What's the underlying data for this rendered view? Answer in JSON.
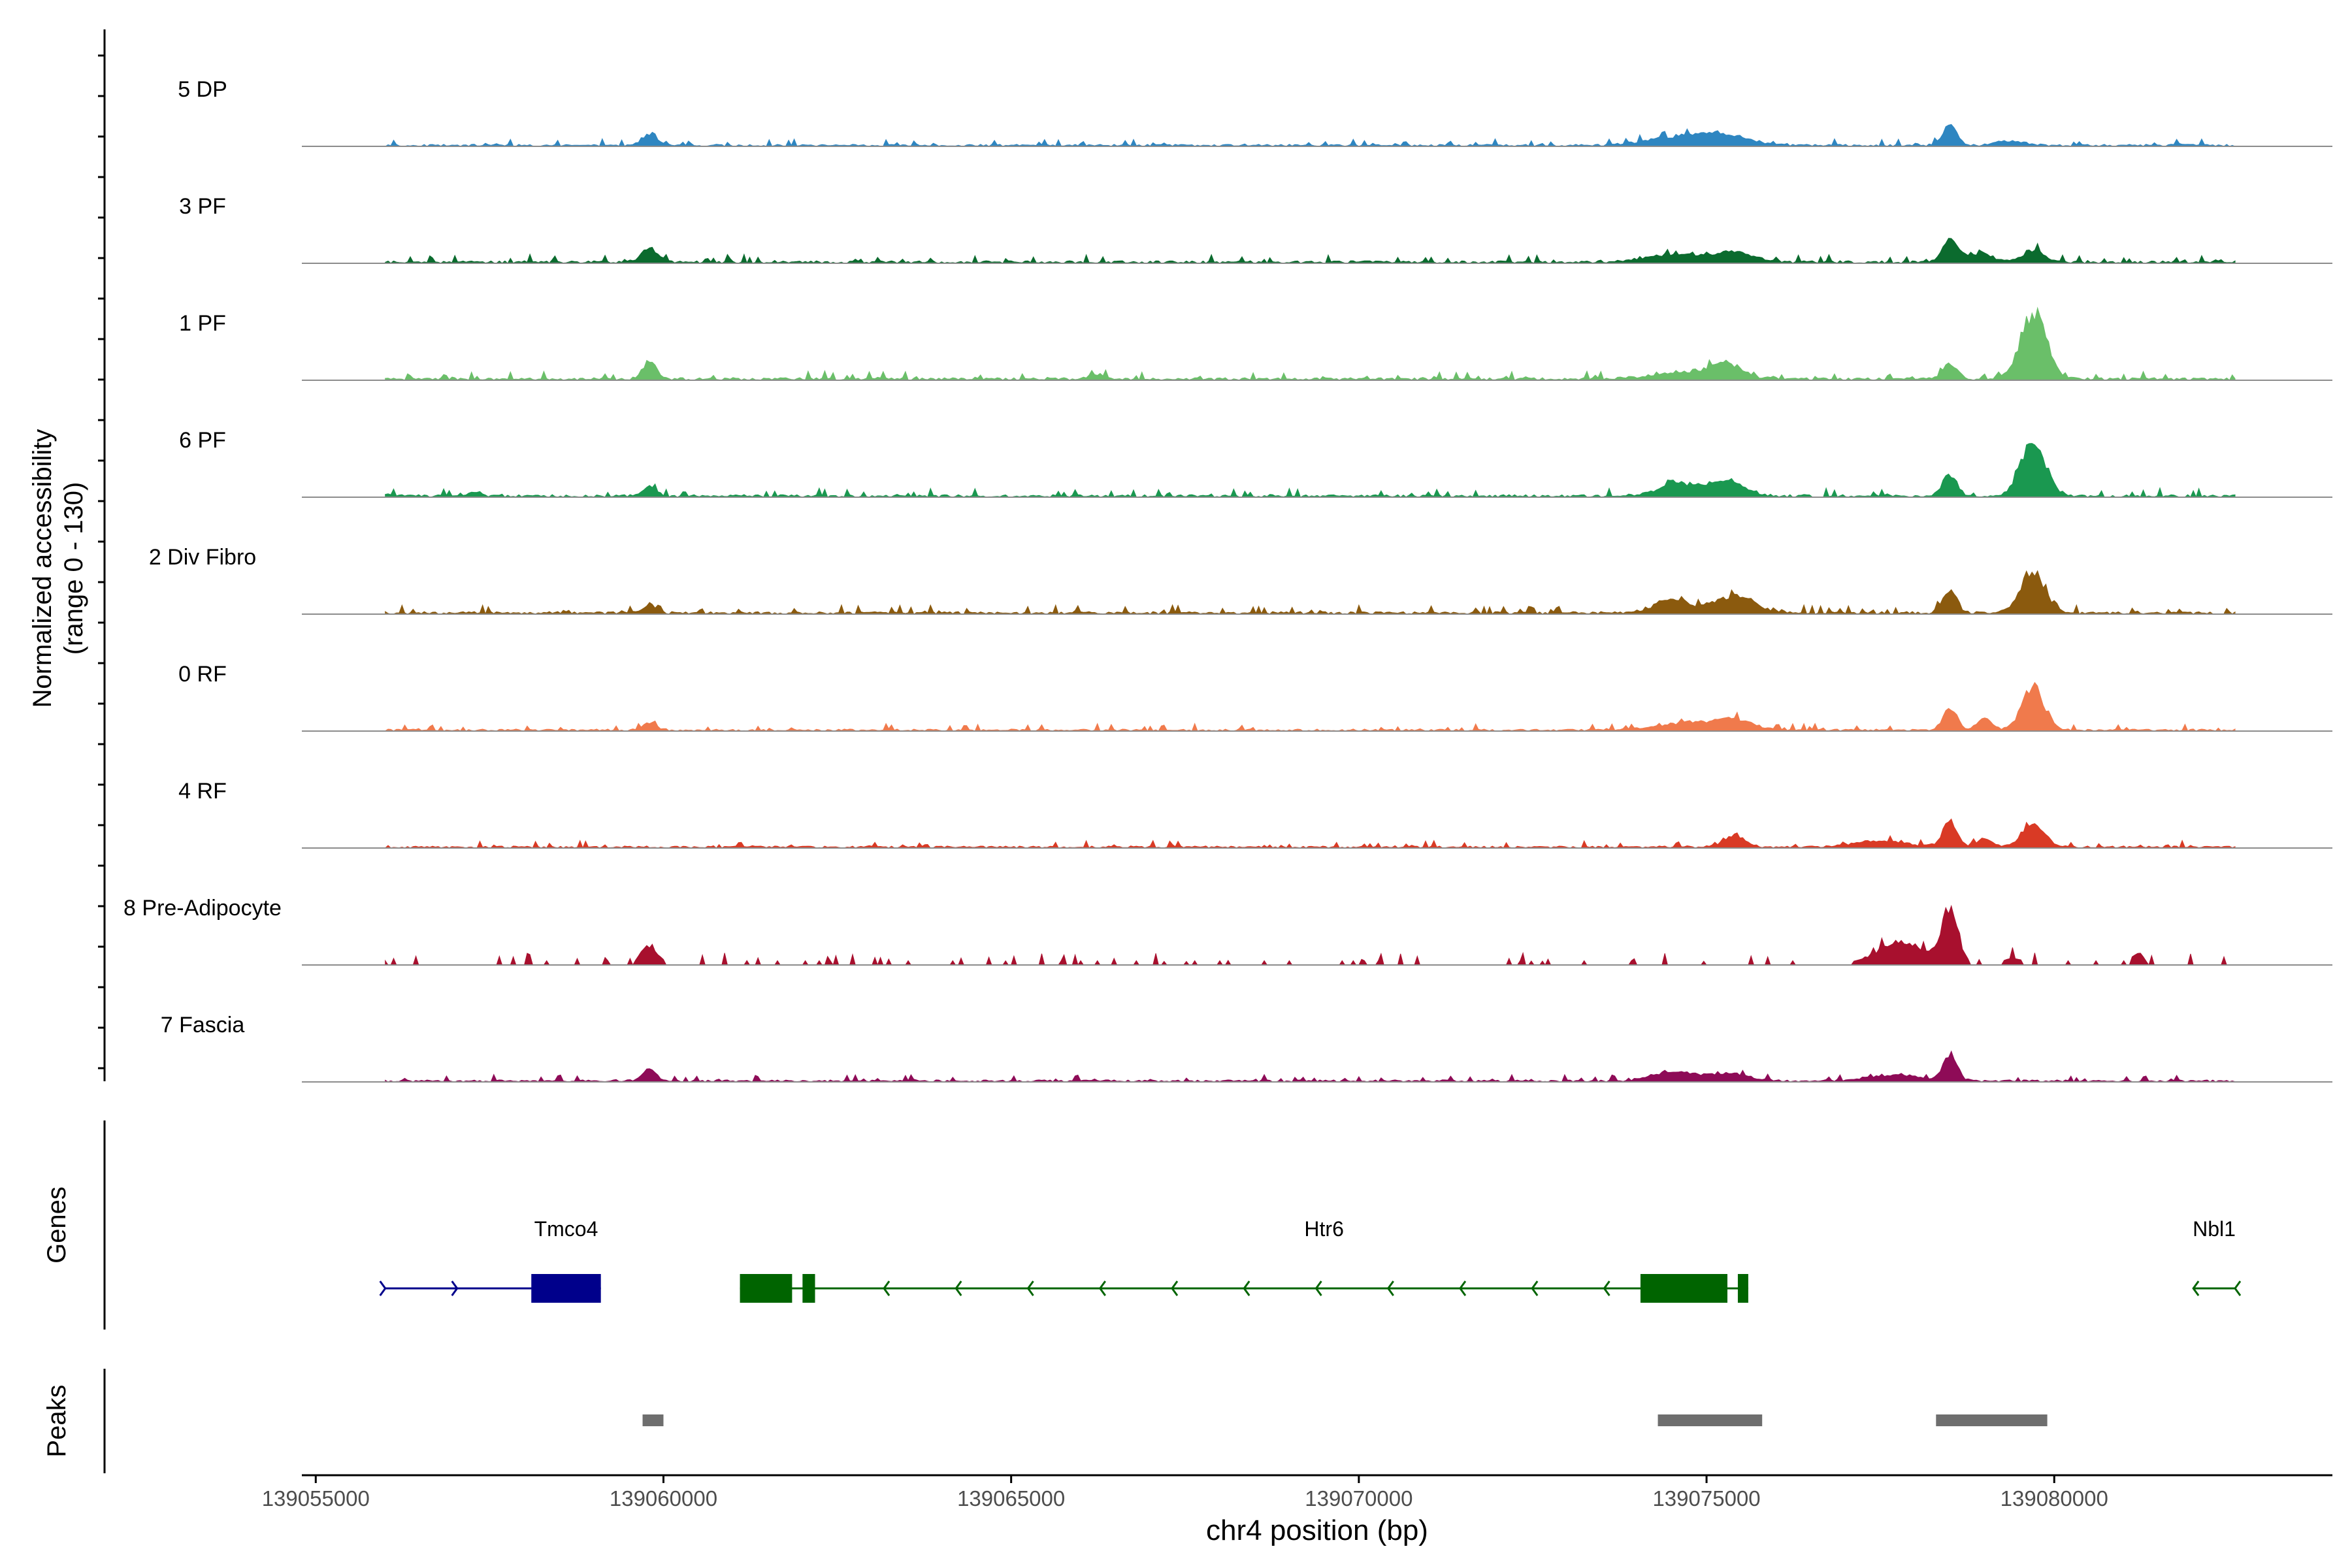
{
  "chart_data": {
    "type": "area",
    "title": "",
    "xlabel": "chr4 position (bp)",
    "ylabel_line1": "Normalized accessibility",
    "ylabel_line2": "(range 0 - 130)",
    "ylim": [
      0,
      130
    ],
    "xlim": [
      139054800,
      139084000
    ],
    "region": [
      139056000,
      139082600
    ],
    "x_ticks": [
      {
        "value": 139055000,
        "label": "139055000"
      },
      {
        "value": 139060000,
        "label": "139060000"
      },
      {
        "value": 139065000,
        "label": "139065000"
      },
      {
        "value": 139070000,
        "label": "139070000"
      },
      {
        "value": 139075000,
        "label": "139075000"
      },
      {
        "value": 139080000,
        "label": "139080000"
      }
    ],
    "series": [
      {
        "name": "5 DP",
        "color": "#2e86c1",
        "noise": 4,
        "peaks": [
          [
            139059800,
            14,
            120
          ],
          [
            139074500,
            10,
            400
          ],
          [
            139075200,
            14,
            350
          ],
          [
            139078500,
            26,
            100
          ],
          [
            139079400,
            6,
            200
          ]
        ]
      },
      {
        "name": "3 PF",
        "color": "#0b6b2e",
        "noise": 5,
        "peaks": [
          [
            139059800,
            18,
            120
          ],
          [
            139074500,
            10,
            400
          ],
          [
            139075400,
            12,
            300
          ],
          [
            139078500,
            30,
            100
          ],
          [
            139078900,
            12,
            200
          ],
          [
            139079700,
            16,
            150
          ]
        ]
      },
      {
        "name": "1 PF",
        "color": "#6abf69",
        "noise": 5,
        "peaks": [
          [
            139059800,
            22,
            100
          ],
          [
            139074800,
            10,
            500
          ],
          [
            139075300,
            16,
            200
          ],
          [
            139078500,
            20,
            100
          ],
          [
            139079700,
            90,
            180
          ],
          [
            139066200,
            6,
            100
          ]
        ]
      },
      {
        "name": "6 PF",
        "color": "#1a9850",
        "noise": 5,
        "peaks": [
          [
            139059800,
            12,
            100
          ],
          [
            139074600,
            16,
            300
          ],
          [
            139075300,
            20,
            250
          ],
          [
            139078500,
            30,
            100
          ],
          [
            139079700,
            70,
            180
          ],
          [
            139057300,
            6,
            80
          ]
        ]
      },
      {
        "name": "2 Div Fibro",
        "color": "#8b5a0e",
        "noise": 5,
        "peaks": [
          [
            139059800,
            10,
            100
          ],
          [
            139074500,
            18,
            250
          ],
          [
            139075400,
            22,
            300
          ],
          [
            139078500,
            30,
            100
          ],
          [
            139079700,
            50,
            180
          ]
        ]
      },
      {
        "name": "0 RF",
        "color": "#f07a4c",
        "noise": 4,
        "peaks": [
          [
            139059800,
            10,
            100
          ],
          [
            139074700,
            10,
            400
          ],
          [
            139075400,
            14,
            250
          ],
          [
            139078500,
            30,
            100
          ],
          [
            139079000,
            16,
            100
          ],
          [
            139079700,
            56,
            160
          ]
        ]
      },
      {
        "name": "4 RF",
        "color": "#d93a25",
        "noise": 4,
        "peaks": [
          [
            139075400,
            16,
            150
          ],
          [
            139078500,
            36,
            100
          ],
          [
            139079000,
            12,
            100
          ],
          [
            139079700,
            30,
            160
          ],
          [
            139077500,
            8,
            400
          ]
        ]
      },
      {
        "name": "8 Pre-Adipocyte",
        "color": "#a8102e",
        "noise": 0,
        "peaks": [
          [
            139059800,
            26,
            120
          ],
          [
            139078500,
            70,
            120
          ],
          [
            139077800,
            30,
            350
          ],
          [
            139079400,
            10,
            120
          ],
          [
            139081200,
            16,
            80
          ]
        ]
      },
      {
        "name": "7 Fascia",
        "color": "#8e0b57",
        "noise": 4,
        "peaks": [
          [
            139059800,
            16,
            100
          ],
          [
            139078500,
            34,
            100
          ],
          [
            139074500,
            12,
            300
          ],
          [
            139075300,
            10,
            300
          ],
          [
            139077700,
            8,
            400
          ]
        ]
      }
    ],
    "genes_label": "Genes",
    "genes": [
      {
        "name": "Tmco4",
        "color": "#00008b",
        "strand": "+",
        "start": 139056000,
        "end": 139059100,
        "exons": [
          [
            139058100,
            139059100
          ]
        ],
        "label_pos": 139058600
      },
      {
        "name": "Htr6",
        "color": "#006400",
        "strand": "-",
        "start": 139061100,
        "end": 139075600,
        "exons": [
          [
            139061100,
            139061850
          ],
          [
            139062000,
            139062180
          ],
          [
            139074050,
            139075300
          ],
          [
            139075450,
            139075600
          ]
        ],
        "label_pos": 139069500
      },
      {
        "name": "Nbl1",
        "color": "#006400",
        "strand": "-",
        "start": 139082000,
        "end": 139082600,
        "exons": [],
        "label_pos": 139082300
      }
    ],
    "peaks_label": "Peaks",
    "peaks": [
      [
        139059700,
        139060000
      ],
      [
        139074300,
        139075800
      ],
      [
        139078300,
        139079900
      ]
    ]
  }
}
